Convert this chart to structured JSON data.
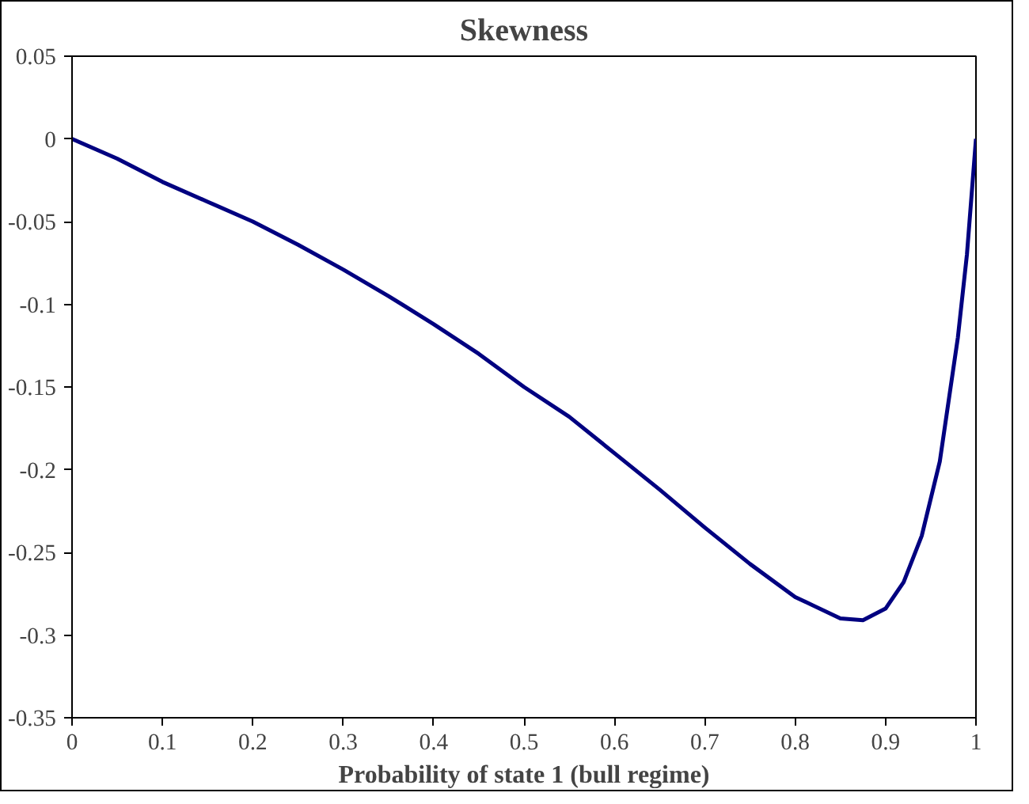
{
  "chart_data": {
    "type": "line",
    "title": "Skewness",
    "xlabel": "Probability of state 1 (bull regime)",
    "xlim": [
      0,
      1
    ],
    "xticks": [
      0,
      0.1,
      0.2,
      0.3,
      0.4,
      0.5,
      0.6,
      0.7,
      0.8,
      0.9,
      1
    ],
    "ylim": [
      -0.35,
      0.05
    ],
    "yticks": [
      -0.35,
      -0.3,
      -0.25,
      -0.2,
      -0.15,
      -0.1,
      -0.05,
      0,
      0.05
    ],
    "marker": "none",
    "line_style": "solid",
    "series": [
      {
        "color": "#000080",
        "x": [
          0,
          0.05,
          0.1,
          0.15,
          0.2,
          0.25,
          0.3,
          0.35,
          0.4,
          0.45,
          0.5,
          0.55,
          0.6,
          0.65,
          0.7,
          0.75,
          0.8,
          0.85,
          0.875,
          0.9,
          0.92,
          0.94,
          0.96,
          0.98,
          0.99,
          1
        ],
        "values": [
          0,
          -0.012,
          -0.026,
          -0.038,
          -0.05,
          -0.064,
          -0.079,
          -0.095,
          -0.112,
          -0.13,
          -0.15,
          -0.168,
          -0.19,
          -0.212,
          -0.235,
          -0.257,
          -0.277,
          -0.29,
          -0.291,
          -0.284,
          -0.268,
          -0.24,
          -0.195,
          -0.12,
          -0.07,
          0
        ]
      }
    ]
  }
}
